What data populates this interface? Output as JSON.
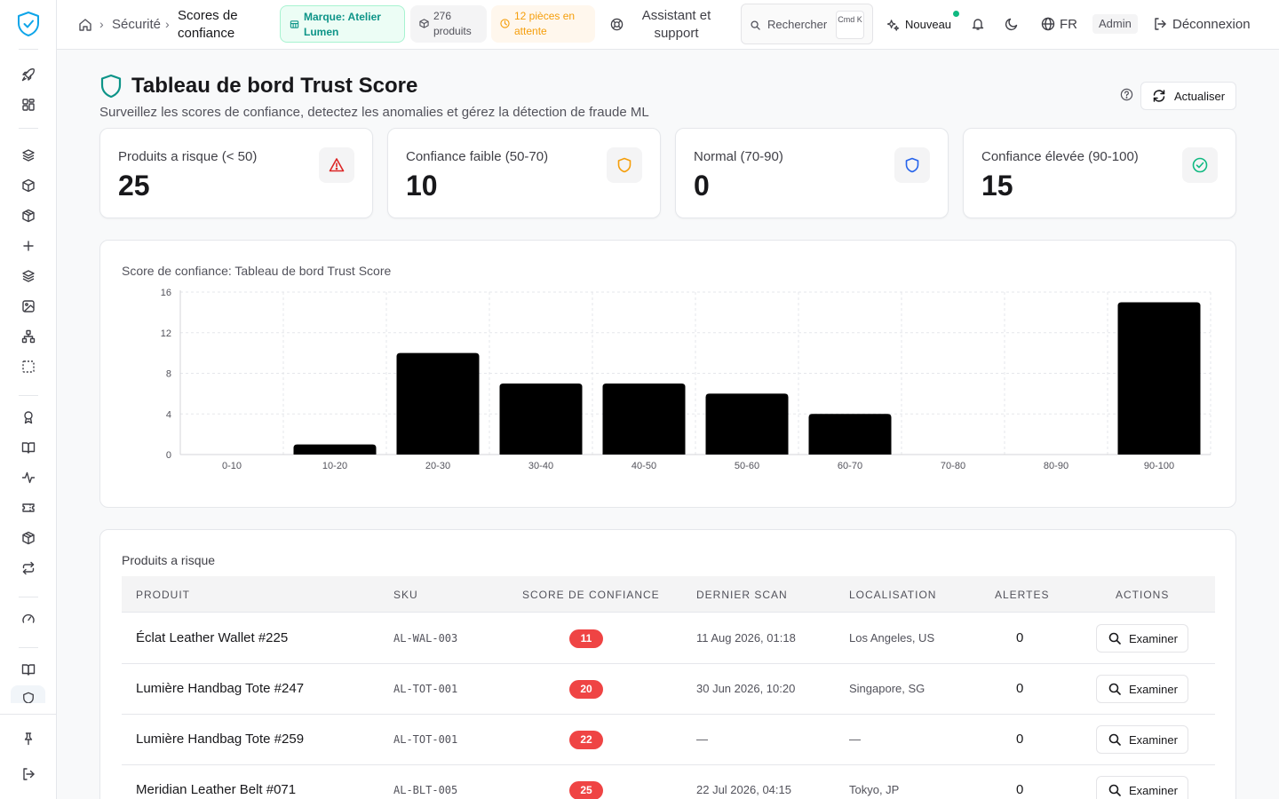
{
  "topbar": {
    "breadcrumb": [
      "Sécurité",
      "Scores de confiance"
    ],
    "brand_pill": "Marque: Atelier Lumen",
    "products_pill": "276 produits",
    "pending_pill": "12 pièces en attente",
    "assistant": "Assistant et support",
    "search_placeholder": "Rechercher",
    "search_kbd": "Cmd K",
    "new_label": "Nouveau",
    "language": "FR",
    "role": "Admin",
    "logout": "Déconnexion"
  },
  "page": {
    "title": "Tableau de bord Trust Score",
    "subtitle": "Surveillez les scores de confiance, detectez les anomalies et gérez la détection de fraude ML",
    "refresh_label": "Actualiser"
  },
  "stats": [
    {
      "label": "Produits a risque (< 50)",
      "value": "25",
      "icon": "alert-triangle-icon",
      "color": "#dc2626"
    },
    {
      "label": "Confiance faible (50-70)",
      "value": "10",
      "icon": "shield-icon",
      "color": "#f59e0b"
    },
    {
      "label": "Normal (70-90)",
      "value": "0",
      "icon": "shield-icon",
      "color": "#2563eb"
    },
    {
      "label": "Confiance élevée (90-100)",
      "value": "15",
      "icon": "check-circle-icon",
      "color": "#10b981"
    }
  ],
  "chart_data": {
    "type": "bar",
    "title": "Score de confiance: Tableau de bord Trust Score",
    "categories": [
      "0-10",
      "10-20",
      "20-30",
      "30-40",
      "40-50",
      "50-60",
      "60-70",
      "70-80",
      "80-90",
      "90-100"
    ],
    "values": [
      0,
      1,
      10,
      7,
      7,
      6,
      4,
      0,
      0,
      15
    ],
    "ylim": [
      0,
      16
    ],
    "yticks": [
      "0",
      "4",
      "8",
      "12",
      "16"
    ],
    "grid": true,
    "bar_color": "#000000"
  },
  "table": {
    "title": "Produits a risque",
    "headers": [
      "PRODUIT",
      "SKU",
      "SCORE DE CONFIANCE",
      "DERNIER SCAN",
      "LOCALISATION",
      "ALERTES",
      "ACTIONS"
    ],
    "action_label": "Examiner",
    "rows": [
      {
        "product": "Éclat Leather Wallet #225",
        "sku": "AL-WAL-003",
        "score": "11",
        "scan": "11 Aug 2026, 01:18",
        "location": "Los Angeles, US",
        "alerts": "0"
      },
      {
        "product": "Lumière Handbag Tote #247",
        "sku": "AL-TOT-001",
        "score": "20",
        "scan": "30 Jun 2026, 10:20",
        "location": "Singapore, SG",
        "alerts": "0"
      },
      {
        "product": "Lumière Handbag Tote #259",
        "sku": "AL-TOT-001",
        "score": "22",
        "scan": "—",
        "location": "—",
        "alerts": "0"
      },
      {
        "product": "Meridian Leather Belt #071",
        "sku": "AL-BLT-005",
        "score": "25",
        "scan": "22 Jul 2026, 04:15",
        "location": "Tokyo, JP",
        "alerts": "0"
      }
    ]
  }
}
